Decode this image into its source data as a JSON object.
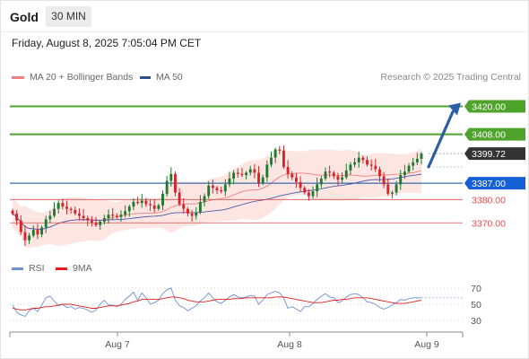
{
  "header": {
    "title": "Gold",
    "timeframe": "30 MIN",
    "datetime": "Friday, August 8, 2025 7:05:04 PM CET"
  },
  "legend": {
    "ma20_label": "MA 20 + Bollinger Bands",
    "ma50_label": "MA 50",
    "copyright": "Research © 2025 Trading Central"
  },
  "rsi_legend": {
    "rsi_label": "RSI",
    "ma_label": "9MA"
  },
  "colors": {
    "resistance": "#4ea42a",
    "support": "#0a4f9e",
    "current": "#333333",
    "minor_level": "#e05050",
    "candle_up": "#1d7a30",
    "candle_down": "#d6252a",
    "bollinger_fill": "#fde5e2",
    "ma20": "#f08080",
    "ma50": "#4a5ba8",
    "rsi": "#6f8fd6",
    "rsi_ma": "#e02020",
    "arrow": "#2d5ea8"
  },
  "chart_data": [
    {
      "type": "candlestick",
      "instrument": "Gold",
      "timeframe": "30 MIN",
      "x_ticks": [
        "Aug 7",
        "Aug 8",
        "Aug 9"
      ],
      "ylim": [
        3357,
        3431
      ],
      "levels": [
        {
          "name": "resistance-2",
          "value": 3420.0,
          "label": "3420.00",
          "style": "resistance"
        },
        {
          "name": "resistance-1",
          "value": 3408.0,
          "label": "3408.00",
          "style": "resistance"
        },
        {
          "name": "current-price",
          "value": 3399.72,
          "label": "3399.72",
          "style": "current"
        },
        {
          "name": "pivot",
          "value": 3387.0,
          "label": "3387.00",
          "style": "support"
        },
        {
          "name": "support-1",
          "value": 3380.0,
          "label": "3380.00",
          "style": "minor"
        },
        {
          "name": "support-2",
          "value": 3370.0,
          "label": "3370.00",
          "style": "minor"
        }
      ],
      "closes": [
        3374.0,
        3371.0,
        3366.0,
        3362.5,
        3364.5,
        3367.0,
        3365.0,
        3368.0,
        3371.5,
        3373.0,
        3376.0,
        3378.5,
        3377.0,
        3376.0,
        3375.5,
        3374.0,
        3373.0,
        3372.0,
        3371.0,
        3370.0,
        3369.0,
        3370.5,
        3372.0,
        3373.5,
        3373.0,
        3372.5,
        3373.5,
        3375.0,
        3377.0,
        3379.0,
        3378.5,
        3379.5,
        3378.0,
        3377.5,
        3376.0,
        3377.5,
        3382.5,
        3388.0,
        3391.0,
        3383.0,
        3378.0,
        3376.0,
        3374.0,
        3373.0,
        3374.5,
        3379.0,
        3381.5,
        3386.0,
        3385.0,
        3384.0,
        3383.5,
        3386.5,
        3389.0,
        3391.5,
        3391.0,
        3390.5,
        3391.5,
        3393.0,
        3391.5,
        3387.0,
        3389.5,
        3395.0,
        3398.0,
        3401.5,
        3401.0,
        3394.0,
        3391.0,
        3389.5,
        3387.5,
        3385.0,
        3383.0,
        3381.5,
        3383.5,
        3386.5,
        3389.0,
        3392.0,
        3391.5,
        3390.0,
        3388.5,
        3389.5,
        3392.5,
        3395.0,
        3396.0,
        3398.0,
        3397.0,
        3395.0,
        3394.5,
        3393.0,
        3390.0,
        3386.5,
        3382.5,
        3383.0,
        3386.5,
        3390.5,
        3392.0,
        3394.5,
        3396.0,
        3397.5,
        3399.72
      ],
      "arrow": {
        "from": 3394.0,
        "to": 3420.0
      }
    },
    {
      "type": "line",
      "name": "RSI",
      "ylim": [
        20,
        80
      ],
      "y_ticks": [
        70,
        50,
        30
      ],
      "series": [
        {
          "name": "RSI",
          "values": [
            49,
            40,
            37,
            35,
            42,
            45,
            41,
            49,
            58,
            60,
            54,
            48,
            50,
            46,
            47,
            44,
            46,
            45,
            43,
            40,
            43,
            50,
            55,
            49,
            49,
            47,
            50,
            56,
            60,
            65,
            55,
            64,
            58,
            50,
            52,
            55,
            63,
            68,
            70,
            55,
            48,
            46,
            42,
            45,
            48,
            54,
            58,
            64,
            58,
            53,
            51,
            55,
            59,
            62,
            59,
            58,
            59,
            61,
            60,
            50,
            55,
            62,
            64,
            66,
            64,
            58,
            45,
            47,
            44,
            41,
            47,
            47,
            51,
            56,
            60,
            63,
            59,
            58,
            52,
            54,
            59,
            62,
            63,
            62,
            58,
            53,
            52,
            50,
            46,
            44,
            46,
            49,
            52,
            56,
            55,
            57,
            58,
            58,
            58
          ]
        },
        {
          "name": "9MA",
          "values": [
            45,
            44,
            43,
            43,
            44,
            45,
            45,
            46,
            47,
            47,
            48,
            49,
            50,
            50,
            50,
            49,
            48,
            47,
            46,
            45,
            45,
            46,
            47,
            48,
            48,
            48,
            49,
            50,
            51,
            53,
            54,
            56,
            56,
            56,
            56,
            56,
            57,
            58,
            59,
            59,
            58,
            57,
            55,
            54,
            53,
            53,
            53,
            54,
            55,
            56,
            56,
            56,
            56,
            57,
            57,
            57,
            58,
            58,
            58,
            58,
            58,
            58,
            58,
            59,
            59,
            59,
            58,
            57,
            56,
            55,
            54,
            53,
            52,
            52,
            52,
            53,
            54,
            55,
            55,
            56,
            56,
            57,
            58,
            58,
            58,
            58,
            57,
            56,
            55,
            54,
            53,
            52,
            51,
            51,
            51,
            52,
            53,
            54,
            55
          ]
        }
      ]
    }
  ]
}
